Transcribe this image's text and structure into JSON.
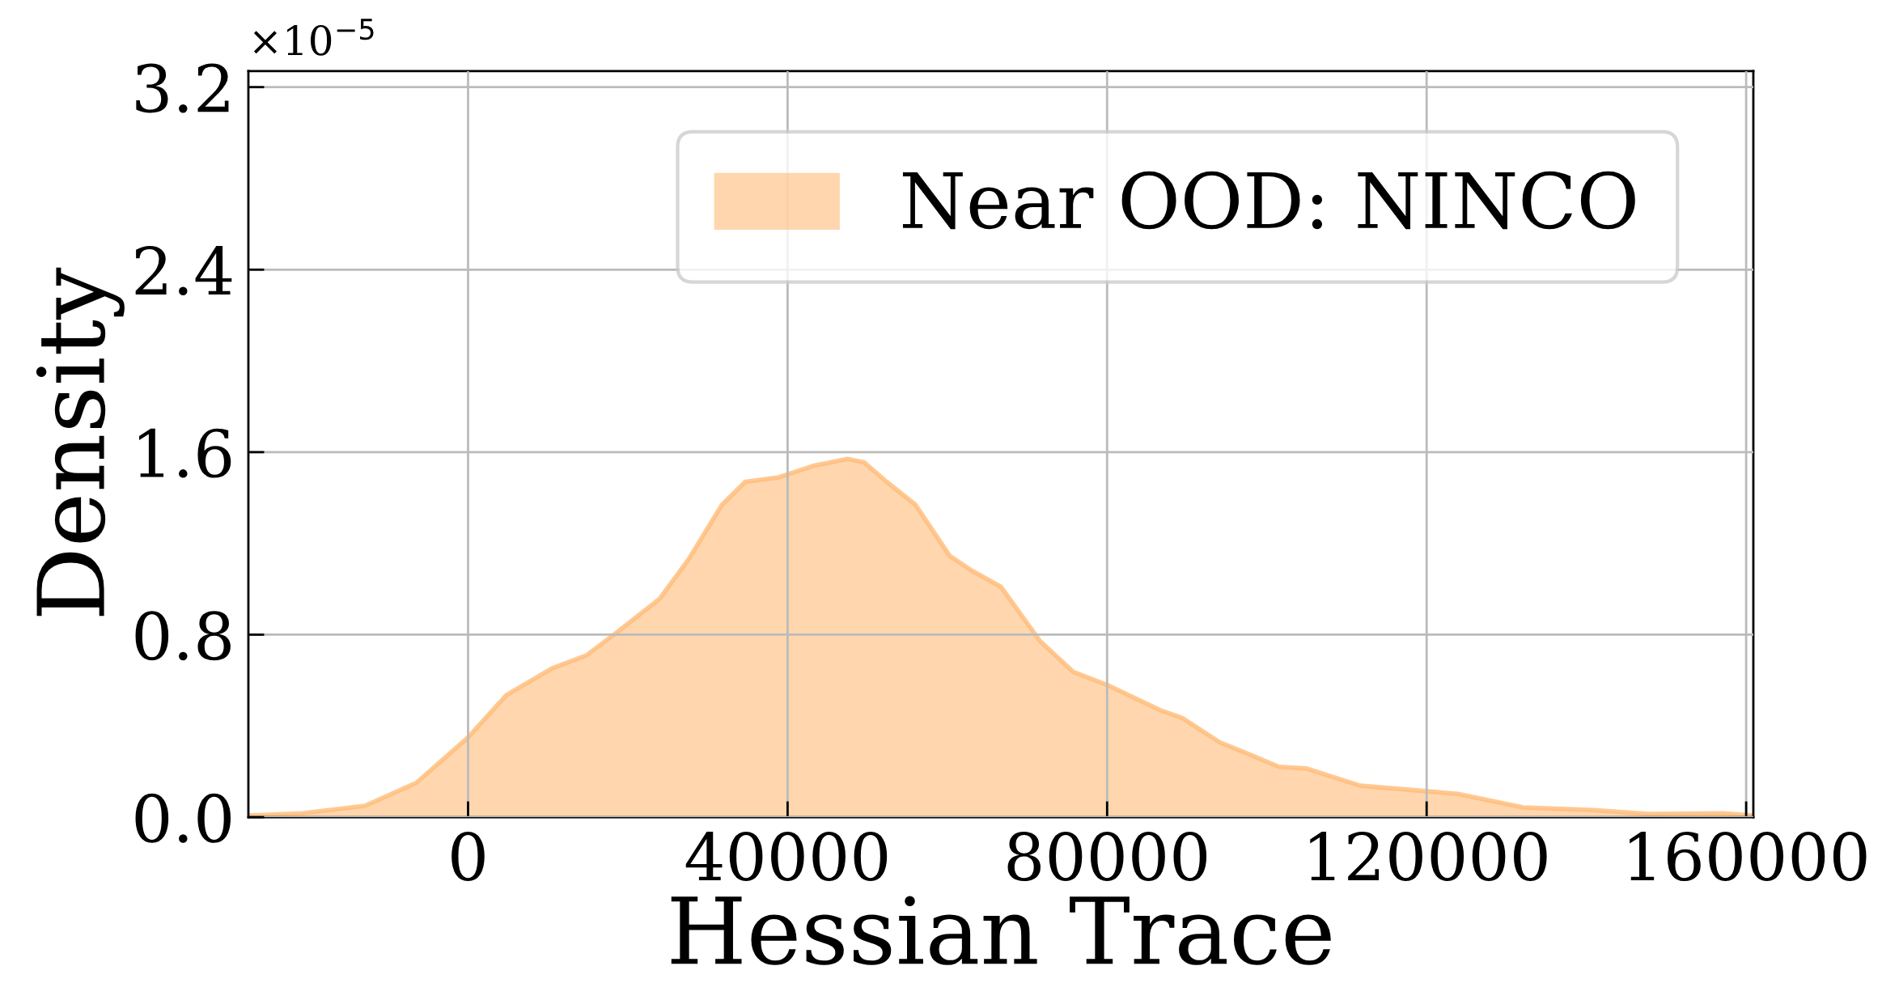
{
  "chart_data": {
    "type": "area",
    "xlabel": "Hessian Trace",
    "ylabel": "Density",
    "annotations": [
      "×10$^{−5}$"
    ],
    "xlim": [
      -27500,
      160900
    ],
    "ylim": [
      0,
      3.27
    ],
    "xticks": [
      0,
      40000,
      80000,
      120000,
      160000
    ],
    "yticks": [
      {
        "value": 0,
        "label": "0.0"
      },
      0.8,
      1.6,
      2.4,
      3.2
    ],
    "grid": true,
    "legend": "top right",
    "series": [
      {
        "name": "Near OOD: NINCO",
        "color": "#ffbb78",
        "x": [
          -27500,
          -20750,
          -12900,
          -6500,
          0,
          4800,
          10500,
          14800,
          19000,
          24000,
          27600,
          31800,
          34700,
          38900,
          43200,
          47500,
          49600,
          52400,
          56000,
          60300,
          63100,
          66700,
          71600,
          75800,
          80000,
          86600,
          89400,
          94100,
          97500,
          101500,
          104900,
          111700,
          119900,
          123900,
          132100,
          140900,
          147700,
          157100,
          160900
        ],
        "values": [
          0.007,
          0.017,
          0.05,
          0.15,
          0.35,
          0.535,
          0.652,
          0.709,
          0.82,
          0.958,
          1.13,
          1.37,
          1.47,
          1.49,
          1.54,
          1.57,
          1.555,
          1.47,
          1.37,
          1.145,
          1.08,
          1.01,
          0.772,
          0.636,
          0.58,
          0.47,
          0.435,
          0.328,
          0.28,
          0.221,
          0.214,
          0.138,
          0.114,
          0.102,
          0.043,
          0.031,
          0.014,
          0.017,
          0.007
        ]
      }
    ]
  }
}
